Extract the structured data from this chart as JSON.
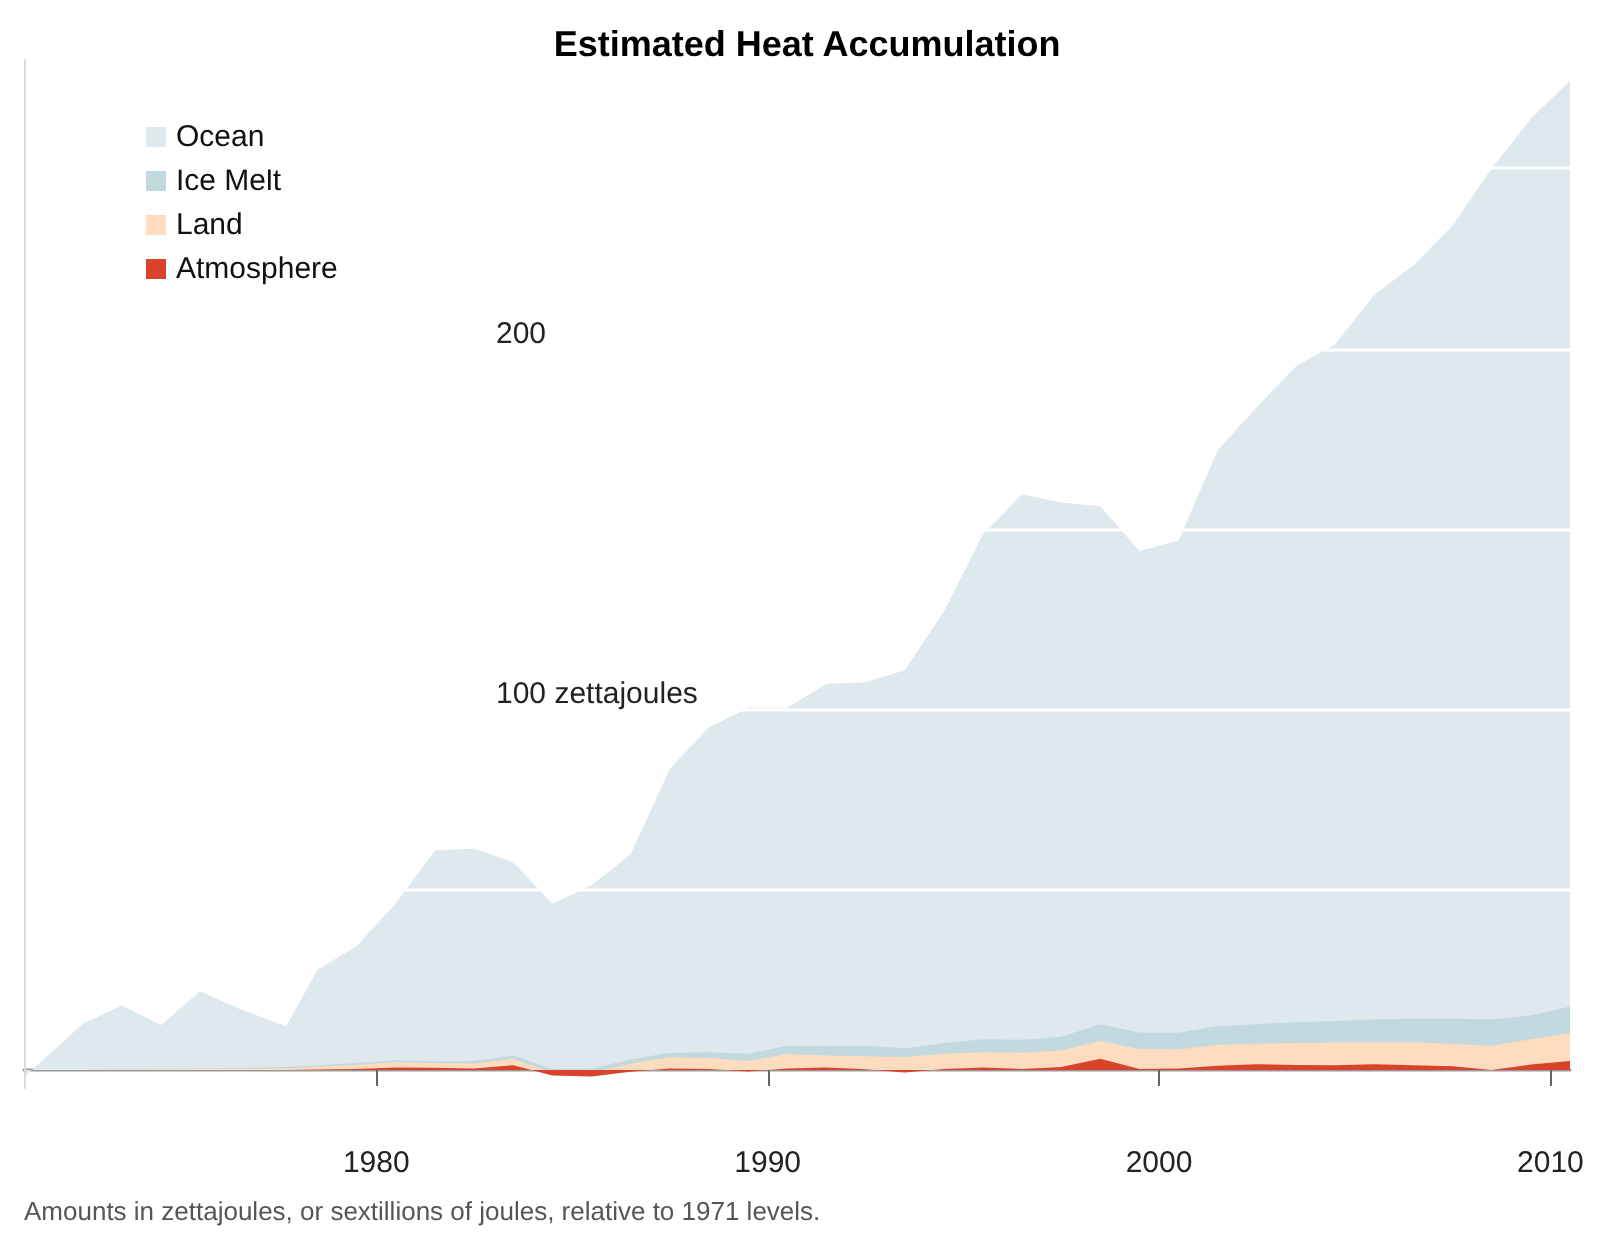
{
  "chart_data": {
    "type": "area",
    "title": "Estimated Heat Accumulation",
    "stacked": true,
    "legend": "top left",
    "grid": "y",
    "x": [
      1971,
      1972.5,
      1973.5,
      1974.5,
      1975.5,
      1976.5,
      1977.7,
      1978.5,
      1979.5,
      1980.5,
      1981.5,
      1982.5,
      1983.5,
      1984.5,
      1985.5,
      1986.5,
      1987.5,
      1988.5,
      1989.5,
      1990.5,
      1991.5,
      1992.5,
      1993.5,
      1994.5,
      1995.5,
      1996.5,
      1997.5,
      1998.5,
      1999.5,
      2000.5,
      2001.5,
      2002.5,
      2003.5,
      2004.5,
      2005.5,
      2006.5,
      2007.5,
      2008.5,
      2009.5,
      2010.5
    ],
    "series": [
      {
        "name": "Atmosphere",
        "color": "#d9432b",
        "values": [
          0,
          0,
          0,
          0,
          0,
          0,
          0,
          0.1,
          0.3,
          0.7,
          0.6,
          0.4,
          1.3,
          -1.5,
          -1.8,
          -0.5,
          0.4,
          0.3,
          -0.4,
          0.4,
          0.7,
          0.2,
          -0.7,
          0.3,
          0.7,
          0.3,
          0.8,
          3.1,
          0.3,
          0.4,
          1.2,
          1.6,
          1.4,
          1.3,
          1.6,
          1.3,
          1.0,
          0,
          1.5,
          2.5
        ]
      },
      {
        "name": "Land",
        "color": "#fddcbf",
        "values": [
          0,
          0,
          0.1,
          0.2,
          0.3,
          0.4,
          0.5,
          0.8,
          1.1,
          1.5,
          1.3,
          1.4,
          1.8,
          0.7,
          1.1,
          2.2,
          3.1,
          3.0,
          2.9,
          4.0,
          3.3,
          3.6,
          4.3,
          4.2,
          4.2,
          4.5,
          4.6,
          4.9,
          5.5,
          5.3,
          5.8,
          5.7,
          6.1,
          6.3,
          6.0,
          6.4,
          6.2,
          6.7,
          7.0,
          7.7
        ]
      },
      {
        "name": "Ice Melt",
        "color": "#c2d9df",
        "values": [
          0,
          0,
          0.1,
          0.1,
          0.1,
          0.2,
          0.3,
          0.4,
          0.5,
          0.5,
          0.5,
          0.7,
          0.9,
          1.1,
          1.1,
          1.2,
          1.3,
          1.6,
          2.0,
          2.3,
          2.7,
          2.9,
          2.4,
          3.0,
          3.6,
          3.6,
          3.8,
          4.7,
          4.6,
          4.6,
          5.2,
          5.4,
          5.8,
          6.0,
          6.4,
          6.5,
          7.0,
          7.3,
          6.6,
          7.4
        ]
      },
      {
        "name": "Ocean",
        "color": "#dfe9ed",
        "values": [
          -2,
          12.8,
          17.7,
          12.2,
          21.4,
          16.4,
          11.3,
          26.5,
          32.5,
          43.5,
          58.5,
          58.8,
          53.6,
          45.8,
          50.8,
          56.9,
          78.7,
          90.1,
          95.9,
          93.7,
          100.3,
          100.8,
          104.8,
          119.5,
          140.0,
          151.2,
          148.1,
          143.6,
          133.5,
          136.5,
          159.7,
          171.1,
          181.8,
          187.6,
          200.9,
          208.9,
          219.9,
          236.0,
          248.6,
          256.7
        ]
      }
    ],
    "xlim": [
      1971,
      2010.5
    ],
    "xticks": [
      1980,
      1990,
      2000,
      2010
    ],
    "ylim": [
      -5,
      280
    ],
    "yticks": [
      {
        "value": 50,
        "label": null
      },
      {
        "value": 100,
        "label": "100 zettajoules"
      },
      {
        "value": 150,
        "label": null
      },
      {
        "value": 200,
        "label": "200"
      },
      {
        "value": 250,
        "label": null
      }
    ],
    "annotations": [
      "Amounts in zettajoules, or sextillions of joules, relative to 1971 levels."
    ]
  }
}
